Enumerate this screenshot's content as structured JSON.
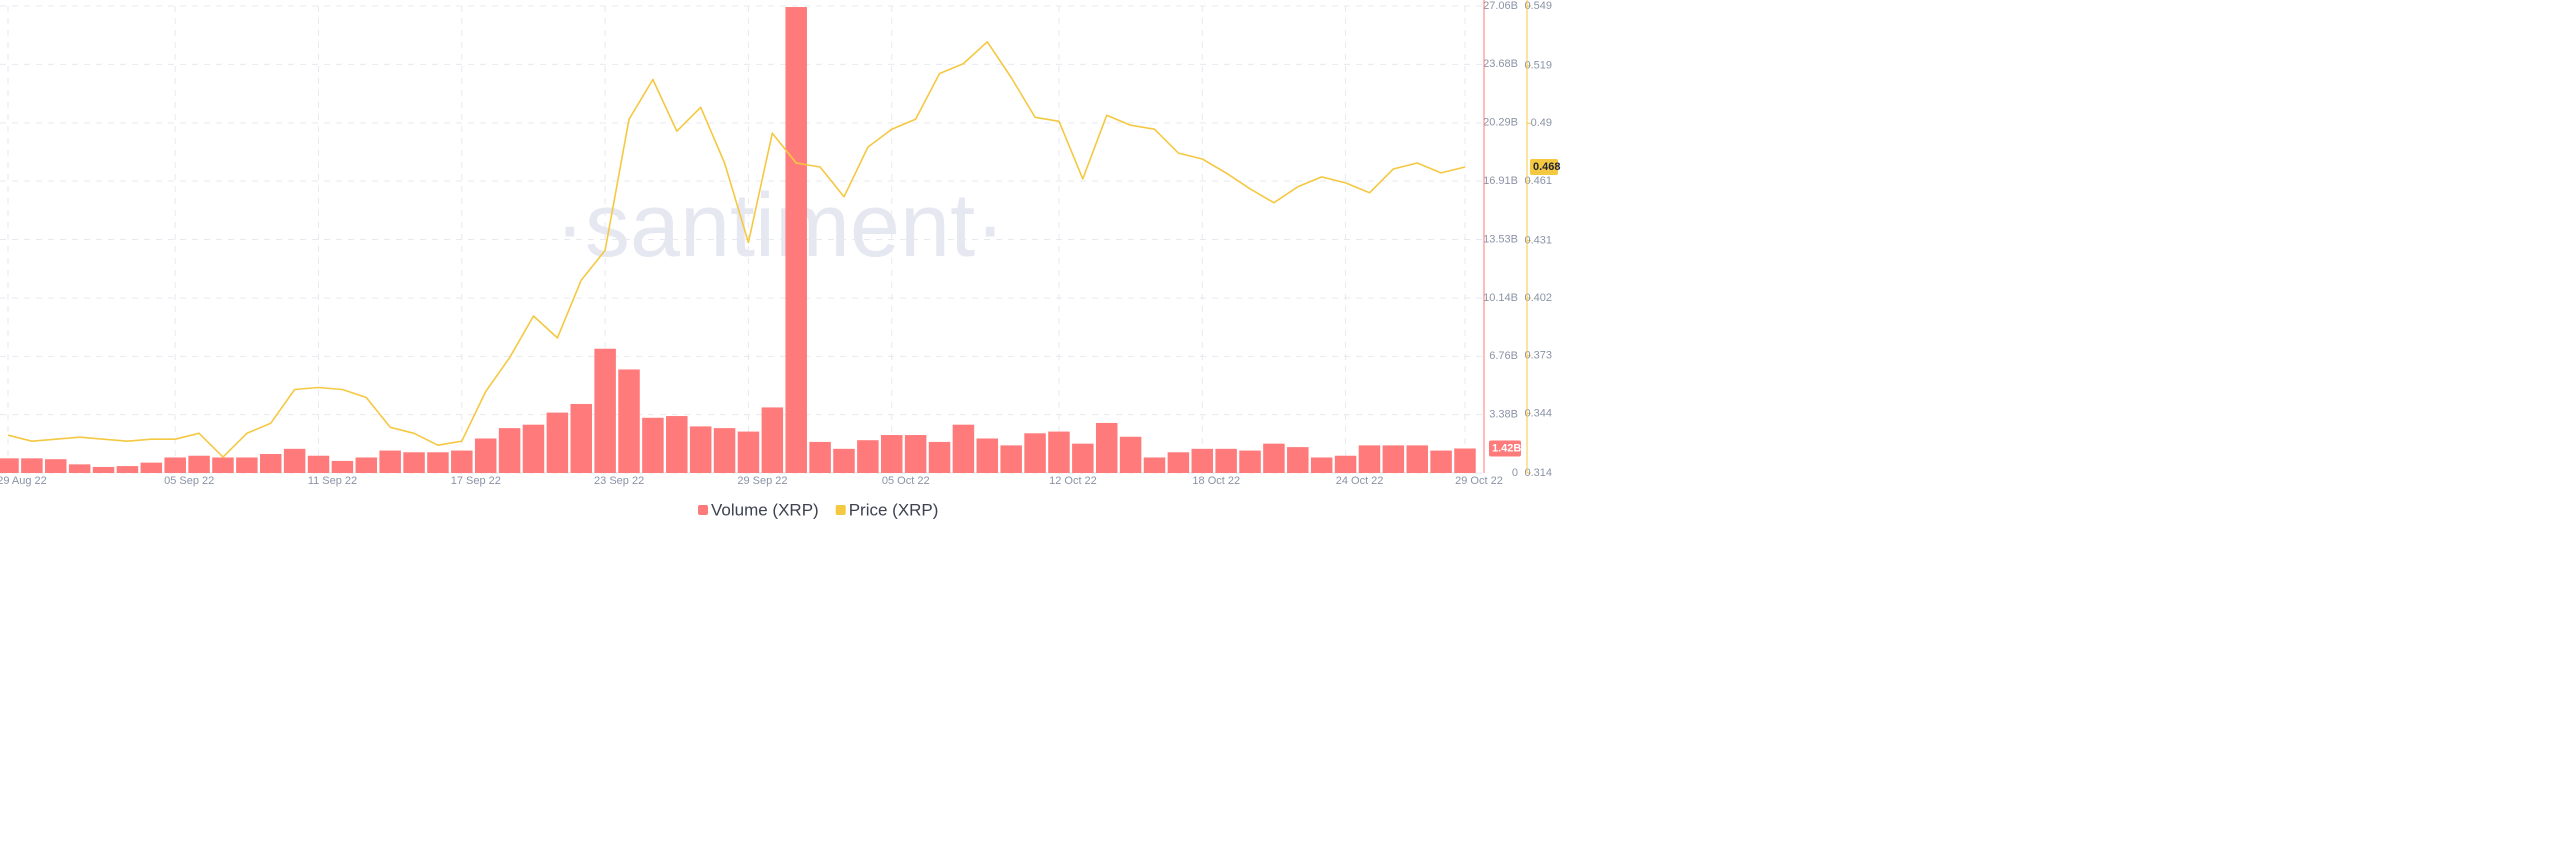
{
  "chart_data": {
    "type": "combo",
    "watermark": "·santiment·",
    "x": [
      "2022-08-29",
      "2022-08-30",
      "2022-08-31",
      "2022-09-01",
      "2022-09-02",
      "2022-09-03",
      "2022-09-04",
      "2022-09-05",
      "2022-09-06",
      "2022-09-07",
      "2022-09-08",
      "2022-09-09",
      "2022-09-10",
      "2022-09-11",
      "2022-09-12",
      "2022-09-13",
      "2022-09-14",
      "2022-09-15",
      "2022-09-16",
      "2022-09-17",
      "2022-09-18",
      "2022-09-19",
      "2022-09-20",
      "2022-09-21",
      "2022-09-22",
      "2022-09-23",
      "2022-09-24",
      "2022-09-25",
      "2022-09-26",
      "2022-09-27",
      "2022-09-28",
      "2022-09-29",
      "2022-09-30",
      "2022-10-01",
      "2022-10-02",
      "2022-10-03",
      "2022-10-04",
      "2022-10-05",
      "2022-10-06",
      "2022-10-07",
      "2022-10-08",
      "2022-10-09",
      "2022-10-10",
      "2022-10-11",
      "2022-10-12",
      "2022-10-13",
      "2022-10-14",
      "2022-10-15",
      "2022-10-16",
      "2022-10-17",
      "2022-10-18",
      "2022-10-19",
      "2022-10-20",
      "2022-10-21",
      "2022-10-22",
      "2022-10-23",
      "2022-10-24",
      "2022-10-25",
      "2022-10-26",
      "2022-10-27",
      "2022-10-28",
      "2022-10-29"
    ],
    "xticks": [
      {
        "value": "2022-08-29",
        "label": "29 Aug 22"
      },
      {
        "value": "2022-09-05",
        "label": "05 Sep 22"
      },
      {
        "value": "2022-09-11",
        "label": "11 Sep 22"
      },
      {
        "value": "2022-09-17",
        "label": "17 Sep 22"
      },
      {
        "value": "2022-09-23",
        "label": "23 Sep 22"
      },
      {
        "value": "2022-09-29",
        "label": "29 Sep 22"
      },
      {
        "value": "2022-10-05",
        "label": "05 Oct 22"
      },
      {
        "value": "2022-10-12",
        "label": "12 Oct 22"
      },
      {
        "value": "2022-10-18",
        "label": "18 Oct 22"
      },
      {
        "value": "2022-10-24",
        "label": "24 Oct 22"
      },
      {
        "value": "2022-10-29",
        "label": "29 Oct 22"
      }
    ],
    "ylim": [
      0,
      27.06
    ],
    "yticks": [
      0,
      {
        "value": 3.38,
        "label": "3.38B"
      },
      {
        "value": 6.76,
        "label": "6.76B"
      },
      {
        "value": 10.14,
        "label": "10.14B"
      },
      {
        "value": 13.53,
        "label": "13.53B"
      },
      {
        "value": 16.91,
        "label": "16.91B"
      },
      {
        "value": 20.29,
        "label": "20.29B"
      },
      {
        "value": 23.68,
        "label": "23.68B"
      },
      {
        "value": 27.06,
        "label": "27.06B"
      }
    ],
    "y2lim": [
      0.314,
      0.549
    ],
    "y2ticks": [
      0.314,
      0.344,
      0.373,
      0.402,
      0.431,
      0.461,
      0.49,
      0.519,
      0.549
    ],
    "grid": true,
    "legend": "bottom",
    "series": [
      {
        "name": "Volume (XRP)",
        "type": "bar",
        "axis": "y",
        "color": "#ff7a7a",
        "values": [
          0.85,
          0.85,
          0.8,
          0.5,
          0.35,
          0.4,
          0.6,
          0.9,
          1.0,
          0.9,
          0.9,
          1.1,
          1.4,
          1.0,
          0.7,
          0.9,
          1.3,
          1.2,
          1.2,
          1.3,
          2.0,
          2.6,
          2.8,
          3.5,
          4.0,
          7.2,
          6.0,
          3.2,
          3.3,
          2.7,
          2.6,
          2.4,
          3.8,
          27.0,
          1.8,
          1.4,
          1.9,
          2.2,
          2.2,
          1.8,
          2.8,
          2.0,
          1.6,
          2.3,
          2.4,
          1.7,
          2.9,
          2.1,
          0.9,
          1.2,
          1.4,
          1.4,
          1.3,
          1.7,
          1.5,
          0.9,
          1.0,
          1.6,
          1.6,
          1.6,
          1.3,
          1.42
        ],
        "value_labels": [
          null,
          null,
          null,
          null,
          null,
          null,
          null,
          null,
          null,
          null,
          null,
          null,
          null,
          null,
          null,
          null,
          null,
          null,
          null,
          null,
          null,
          null,
          null,
          null,
          null,
          null,
          null,
          null,
          null,
          null,
          null,
          null,
          null,
          null,
          null,
          null,
          null,
          null,
          null,
          null,
          null,
          null,
          null,
          null,
          null,
          null,
          null,
          null,
          null,
          null,
          null,
          null,
          null,
          null,
          null,
          null,
          null,
          null,
          null,
          null,
          null,
          "1.42B"
        ]
      },
      {
        "name": "Price (XRP)",
        "type": "line",
        "axis": "y2",
        "color": "#f5c842",
        "values": [
          0.333,
          0.33,
          0.331,
          0.332,
          0.331,
          0.33,
          0.331,
          0.331,
          0.334,
          0.322,
          0.334,
          0.339,
          0.356,
          0.357,
          0.356,
          0.352,
          0.337,
          0.334,
          0.328,
          0.33,
          0.355,
          0.372,
          0.393,
          0.382,
          0.411,
          0.426,
          0.492,
          0.512,
          0.486,
          0.498,
          0.47,
          0.43,
          0.485,
          0.47,
          0.468,
          0.453,
          0.478,
          0.487,
          0.492,
          0.515,
          0.52,
          0.531,
          0.513,
          0.493,
          0.491,
          0.462,
          0.494,
          0.489,
          0.487,
          0.475,
          0.472,
          0.465,
          0.457,
          0.45,
          0.458,
          0.463,
          0.46,
          0.455,
          0.467,
          0.47,
          0.465,
          0.468
        ]
      }
    ]
  }
}
